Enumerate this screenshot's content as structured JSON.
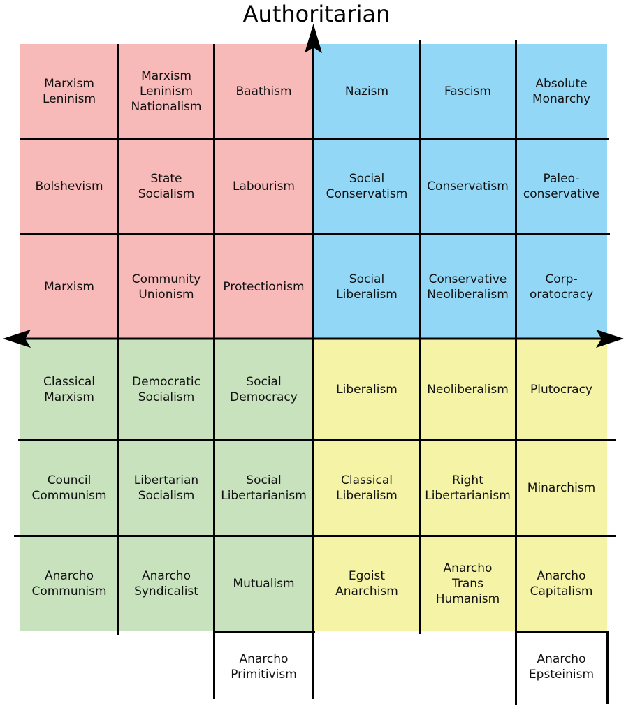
{
  "axis_label_top": "Authoritarian",
  "colors": {
    "auth_left": "#f8b9b9",
    "auth_right": "#92d8f6",
    "lib_left": "#c8e2bd",
    "lib_right": "#f4f3a6",
    "lines": "#000000"
  },
  "grid": {
    "rows": [
      [
        "Marxism\nLeninism",
        "Marxism\nLeninism\nNationalism",
        "Baathism",
        "Nazism",
        "Fascism",
        "Absolute\nMonarchy"
      ],
      [
        "Bolshevism",
        "State\nSocialism",
        "Labourism",
        "Social\nConservatism",
        "Conservatism",
        "Paleo-\nconservative"
      ],
      [
        "Marxism",
        "Community\nUnionism",
        "Protectionism",
        "Social\nLiberalism",
        "Conservative\nNeoliberalism",
        "Corp-\noratocracy"
      ],
      [
        "Classical\nMarxism",
        "Democratic\nSocialism",
        "Social\nDemocracy",
        "Liberalism",
        "Neoliberalism",
        "Plutocracy"
      ],
      [
        "Council\nCommunism",
        "Libertarian\nSocialism",
        "Social\nLibertarianism",
        "Classical\nLiberalism",
        "Right\nLibertarianism",
        "Minarchism"
      ],
      [
        "Anarcho\nCommunism",
        "Anarcho\nSyndicalist",
        "Mutualism",
        "Egoist\nAnarchism",
        "Anarcho\nTrans\nHumanism",
        "Anarcho\nCapitalism"
      ]
    ]
  },
  "extras": [
    {
      "label": "Anarcho\nPrimitivism",
      "column": 3
    },
    {
      "label": "Anarcho\nEpsteinism",
      "column": 6
    }
  ]
}
